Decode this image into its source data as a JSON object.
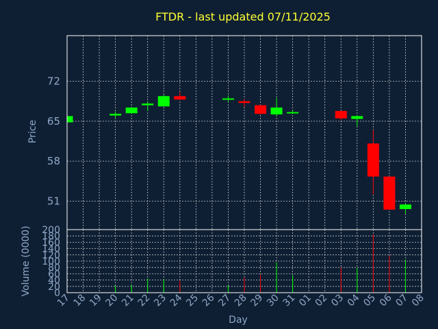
{
  "chart_data": {
    "type": "candlestick",
    "title": "FTDR - last updated 07/11/2025",
    "xlabel": "Day",
    "price_panel": {
      "ylabel": "Price",
      "ylim": [
        46,
        80
      ],
      "yticks": [
        51,
        58,
        65,
        72
      ],
      "grid": true
    },
    "volume_panel": {
      "ylabel": "Volume (0000)",
      "ylim": [
        0,
        200
      ],
      "yticks": [
        0,
        20,
        40,
        60,
        80,
        100,
        120,
        140,
        160,
        180,
        200
      ],
      "grid": true
    },
    "colors": {
      "up": "#00ff00",
      "down": "#ff0000",
      "title": "#ffff33",
      "axis_text": "#8fa8c8",
      "background": "#0f1f33"
    },
    "x_labels": [
      "17",
      "18",
      "19",
      "20",
      "21",
      "22",
      "23",
      "24",
      "25",
      "26",
      "27",
      "28",
      "29",
      "30",
      "31",
      "01",
      "02",
      "03",
      "04",
      "05",
      "06",
      "07",
      "08"
    ],
    "candles": [
      {
        "day": "17",
        "open": 64.8,
        "close": 65.9,
        "high": 65.9,
        "low": 64.8,
        "volume": 0
      },
      {
        "day": "20",
        "open": 66.0,
        "close": 66.3,
        "high": 66.7,
        "low": 65.6,
        "volume": 22
      },
      {
        "day": "21",
        "open": 66.4,
        "close": 67.4,
        "high": 67.5,
        "low": 66.3,
        "volume": 25
      },
      {
        "day": "22",
        "open": 67.8,
        "close": 68.1,
        "high": 68.5,
        "low": 66.8,
        "volume": 45
      },
      {
        "day": "23",
        "open": 67.6,
        "close": 69.4,
        "high": 69.6,
        "low": 67.6,
        "volume": 42
      },
      {
        "day": "24",
        "open": 69.4,
        "close": 68.8,
        "high": 70.2,
        "low": 68.7,
        "volume": 38
      },
      {
        "day": "27",
        "open": 68.8,
        "close": 69.0,
        "high": 69.5,
        "low": 68.4,
        "volume": 24
      },
      {
        "day": "28",
        "open": 68.5,
        "close": 68.2,
        "high": 68.9,
        "low": 67.5,
        "volume": 48
      },
      {
        "day": "29",
        "open": 67.8,
        "close": 66.3,
        "high": 67.9,
        "low": 66.1,
        "volume": 58
      },
      {
        "day": "30",
        "open": 66.2,
        "close": 67.4,
        "high": 69.1,
        "low": 65.9,
        "volume": 96
      },
      {
        "day": "31",
        "open": 66.4,
        "close": 66.6,
        "high": 66.9,
        "low": 66.3,
        "volume": 55
      },
      {
        "day": "03",
        "open": 66.8,
        "close": 65.5,
        "high": 66.8,
        "low": 65.2,
        "volume": 80
      },
      {
        "day": "04",
        "open": 65.4,
        "close": 65.9,
        "high": 66.0,
        "low": 64.1,
        "volume": 78
      },
      {
        "day": "05",
        "open": 61.1,
        "close": 55.3,
        "high": 63.5,
        "low": 52.2,
        "volume": 185
      },
      {
        "day": "06",
        "open": 55.3,
        "close": 49.5,
        "high": 55.3,
        "low": 49.5,
        "volume": 118
      },
      {
        "day": "07",
        "open": 49.6,
        "close": 50.4,
        "high": 50.6,
        "low": 48.8,
        "volume": 105
      }
    ]
  }
}
